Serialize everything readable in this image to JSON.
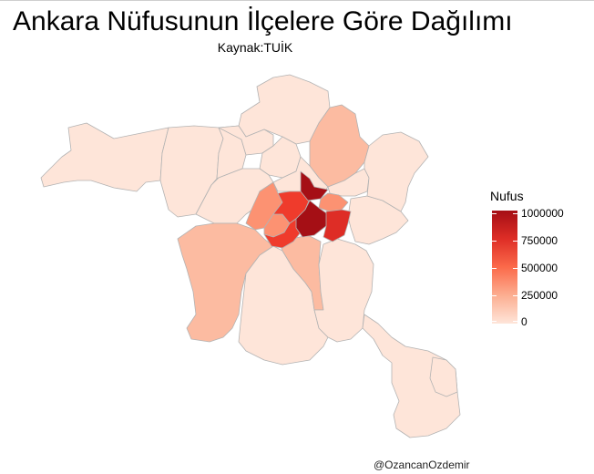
{
  "title": "Ankara Nüfusunun İlçelere Göre Dağılımı",
  "subtitle": "Kaynak:TUİK",
  "caption": "@OzancanOzdemir",
  "legend": {
    "title": "Nufus",
    "labels": [
      "1000000",
      "750000",
      "500000",
      "250000",
      "0"
    ],
    "colors": [
      "#a50f15",
      "#de2d26",
      "#fb6a4a",
      "#fcae91",
      "#fee5d9"
    ]
  },
  "colors": {
    "lightest": "#fee5d9",
    "light": "#fdd0bc",
    "medium_light": "#fcbba1",
    "medium": "#fc9272",
    "medium_dark": "#ef3b2c",
    "dark": "#cb181d",
    "darkest": "#a50f15",
    "border": "#b3b3b3"
  }
}
